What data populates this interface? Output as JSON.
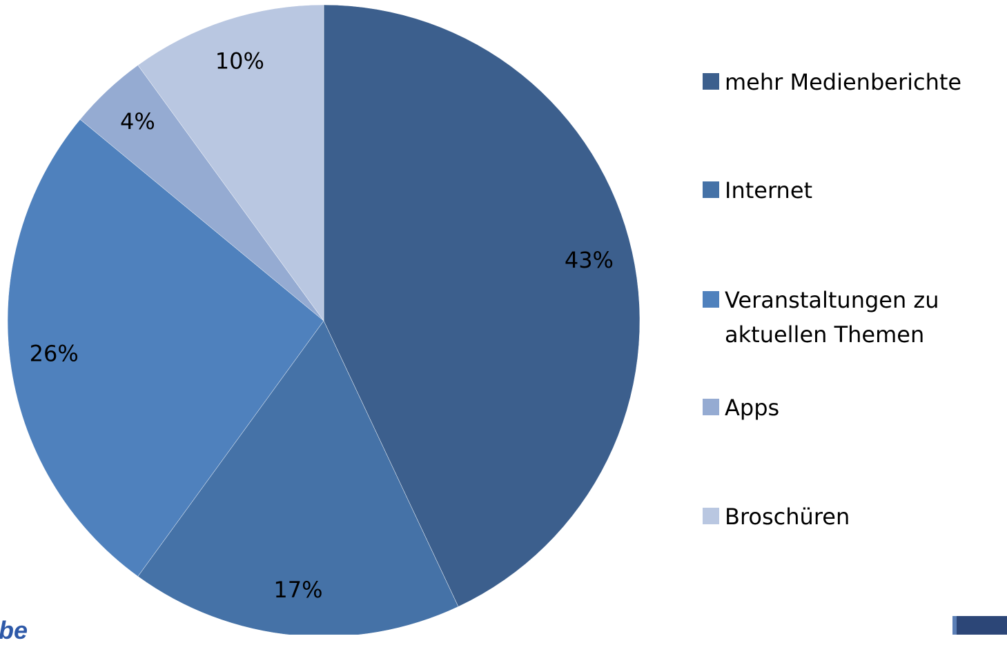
{
  "chart_data": {
    "type": "pie",
    "categories": [
      "mehr Medienberichte",
      "Internet",
      "Veranstaltungen zu aktuellen Themen",
      "Apps",
      "Broschüren"
    ],
    "values": [
      43,
      17,
      26,
      4,
      10
    ],
    "value_labels": [
      "43%",
      "17%",
      "26%",
      "4%",
      "10%"
    ],
    "colors": [
      "#3c5f8d",
      "#4572a7",
      "#4f81bd",
      "#95abd2",
      "#b9c7e1"
    ],
    "legend": "right"
  },
  "footer": {
    "text": "be"
  }
}
